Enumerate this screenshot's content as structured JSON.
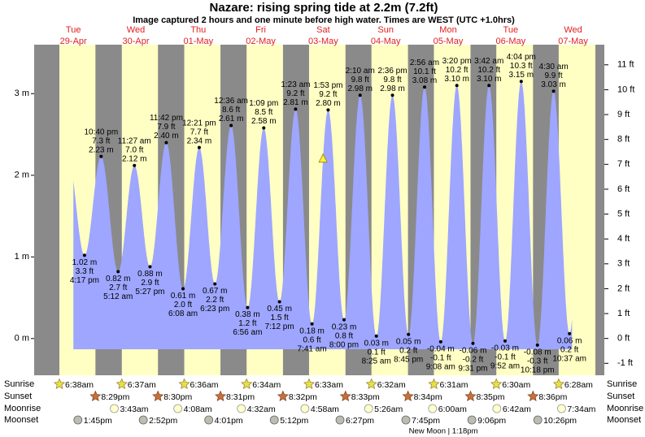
{
  "chart_data": {
    "type": "area",
    "title": "Nazare: rising  spring tide at 2.2m (7.2ft)",
    "subtitle": "Image captured 2 hours and one minute before high water. Times are WEST (UTC +1.0hrs)",
    "color": "#9ea6ff",
    "ylim": [
      -0.45,
      3.6
    ],
    "yticks": [
      {
        "value": 0,
        "label": "0 m"
      },
      {
        "value": 1,
        "label": "1 m"
      },
      {
        "value": 2,
        "label": "2 m"
      },
      {
        "value": 3,
        "label": "3 m"
      }
    ],
    "y2lim": [
      -1.48,
      11.81
    ],
    "y2ticks": [
      {
        "value": -1,
        "label": "-1 ft"
      },
      {
        "value": 0,
        "label": "0 ft"
      },
      {
        "value": 1,
        "label": "1 ft"
      },
      {
        "value": 2,
        "label": "2 ft"
      },
      {
        "value": 3,
        "label": "3 ft"
      },
      {
        "value": 4,
        "label": "4 ft"
      },
      {
        "value": 5,
        "label": "5 ft"
      },
      {
        "value": 6,
        "label": "6 ft"
      },
      {
        "value": 7,
        "label": "7 ft"
      },
      {
        "value": 8,
        "label": "8 ft"
      },
      {
        "value": 9,
        "label": "9 ft"
      },
      {
        "value": 10,
        "label": "10 ft"
      },
      {
        "value": 11,
        "label": "11 ft"
      }
    ],
    "row_labels": [
      "Sunrise",
      "Sunset",
      "Moonrise",
      "Moonset"
    ],
    "moon_phase": "New Moon | 1:18pm",
    "marker": {
      "height": 2.2
    },
    "days": [
      {
        "weekday": "Tue",
        "date": "29-Apr",
        "sunrise": "6:38am",
        "sunset": "8:29pm",
        "moonrise": null,
        "moonset": "1:45pm",
        "tides": [
          {
            "time": "4:17 pm",
            "height": 1.02,
            "height_label": "1.02 m",
            "feet": 3.3,
            "feet_label": "3.3 ft"
          },
          {
            "time": "10:40 pm",
            "height": 2.23,
            "height_label": "2.23 m",
            "feet": 7.3,
            "feet_label": "7.3 ft"
          }
        ]
      },
      {
        "weekday": "Wed",
        "date": "30-Apr",
        "sunrise": "6:37am",
        "sunset": "8:30pm",
        "moonrise": "3:43am",
        "moonset": "2:52pm",
        "tides": [
          {
            "time": "5:12 am",
            "height": 0.82,
            "height_label": "0.82 m",
            "feet": 2.7,
            "feet_label": "2.7 ft"
          },
          {
            "time": "11:27 am",
            "height": 2.12,
            "height_label": "2.12 m",
            "feet": 7.0,
            "feet_label": "7.0 ft"
          },
          {
            "time": "5:27 pm",
            "height": 0.88,
            "height_label": "0.88 m",
            "feet": 2.9,
            "feet_label": "2.9 ft"
          },
          {
            "time": "11:42 pm",
            "height": 2.4,
            "height_label": "2.40 m",
            "feet": 7.9,
            "feet_label": "7.9 ft"
          }
        ]
      },
      {
        "weekday": "Thu",
        "date": "01-May",
        "sunrise": "6:36am",
        "sunset": "8:31pm",
        "moonrise": "4:08am",
        "moonset": "4:01pm",
        "tides": [
          {
            "time": "6:08 am",
            "height": 0.61,
            "height_label": "0.61 m",
            "feet": 2.0,
            "feet_label": "2.0 ft"
          },
          {
            "time": "12:21 pm",
            "height": 2.34,
            "height_label": "2.34 m",
            "feet": 7.7,
            "feet_label": "7.7 ft"
          },
          {
            "time": "6:23 pm",
            "height": 0.67,
            "height_label": "0.67 m",
            "feet": 2.2,
            "feet_label": "2.2 ft"
          }
        ]
      },
      {
        "weekday": "Fri",
        "date": "02-May",
        "sunrise": "6:34am",
        "sunset": "8:32pm",
        "moonrise": "4:32am",
        "moonset": "5:12pm",
        "tides": [
          {
            "time": "12:36 am",
            "height": 2.61,
            "height_label": "2.61 m",
            "feet": 8.6,
            "feet_label": "8.6 ft"
          },
          {
            "time": "6:56 am",
            "height": 0.38,
            "height_label": "0.38 m",
            "feet": 1.2,
            "feet_label": "1.2 ft"
          },
          {
            "time": "1:09 pm",
            "height": 2.58,
            "height_label": "2.58 m",
            "feet": 8.5,
            "feet_label": "8.5 ft"
          },
          {
            "time": "7:12 pm",
            "height": 0.45,
            "height_label": "0.45 m",
            "feet": 1.5,
            "feet_label": "1.5 ft"
          }
        ]
      },
      {
        "weekday": "Sat",
        "date": "03-May",
        "sunrise": "6:33am",
        "sunset": "8:33pm",
        "moonrise": "4:58am",
        "moonset": "6:27pm",
        "tides": [
          {
            "time": "1:23 am",
            "height": 2.81,
            "height_label": "2.81 m",
            "feet": 9.2,
            "feet_label": "9.2 ft"
          },
          {
            "time": "7:41 am",
            "height": 0.18,
            "height_label": "0.18 m",
            "feet": 0.6,
            "feet_label": "0.6 ft"
          },
          {
            "time": "1:53 pm",
            "height": 2.8,
            "height_label": "2.80 m",
            "feet": 9.2,
            "feet_label": "9.2 ft"
          },
          {
            "time": "8:00 pm",
            "height": 0.23,
            "height_label": "0.23 m",
            "feet": 0.8,
            "feet_label": "0.8 ft"
          }
        ]
      },
      {
        "weekday": "Sun",
        "date": "04-May",
        "sunrise": "6:32am",
        "sunset": "8:34pm",
        "moonrise": "5:26am",
        "moonset": "7:45pm",
        "tides": [
          {
            "time": "2:10 am",
            "height": 2.98,
            "height_label": "2.98 m",
            "feet": 9.8,
            "feet_label": "9.8 ft"
          },
          {
            "time": "8:25 am",
            "height": 0.03,
            "height_label": "0.03 m",
            "feet": 0.1,
            "feet_label": "0.1 ft"
          },
          {
            "time": "2:36 pm",
            "height": 2.98,
            "height_label": "2.98 m",
            "feet": 9.8,
            "feet_label": "9.8 ft"
          },
          {
            "time": "8:45 pm",
            "height": 0.05,
            "height_label": "0.05 m",
            "feet": 0.2,
            "feet_label": "0.2 ft"
          }
        ]
      },
      {
        "weekday": "Mon",
        "date": "05-May",
        "sunrise": "6:31am",
        "sunset": "8:35pm",
        "moonrise": "6:00am",
        "moonset": "9:06pm",
        "tides": [
          {
            "time": "2:56 am",
            "height": 3.08,
            "height_label": "3.08 m",
            "feet": 10.1,
            "feet_label": "10.1 ft"
          },
          {
            "time": "9:08 am",
            "height": -0.04,
            "height_label": "-0.04 m",
            "feet": -0.1,
            "feet_label": "-0.1 ft"
          },
          {
            "time": "3:20 pm",
            "height": 3.1,
            "height_label": "3.10 m",
            "feet": 10.2,
            "feet_label": "10.2 ft"
          },
          {
            "time": "9:31 pm",
            "height": -0.06,
            "height_label": "-0.06 m",
            "feet": -0.2,
            "feet_label": "-0.2 ft"
          }
        ]
      },
      {
        "weekday": "Tue",
        "date": "06-May",
        "sunrise": "6:30am",
        "sunset": "8:36pm",
        "moonrise": "6:42am",
        "moonset": "10:26pm",
        "tides": [
          {
            "time": "3:42 am",
            "height": 3.1,
            "height_label": "3.10 m",
            "feet": 10.2,
            "feet_label": "10.2 ft"
          },
          {
            "time": "9:52 am",
            "height": -0.03,
            "height_label": "-0.03 m",
            "feet": -0.1,
            "feet_label": "-0.1 ft"
          },
          {
            "time": "4:04 pm",
            "height": 3.15,
            "height_label": "3.15 m",
            "feet": 10.3,
            "feet_label": "10.3 ft"
          },
          {
            "time": "10:18 pm",
            "height": -0.08,
            "height_label": "-0.08 m",
            "feet": -0.3,
            "feet_label": "-0.3 ft"
          }
        ]
      },
      {
        "weekday": "Wed",
        "date": "07-May",
        "sunrise": "6:28am",
        "sunset": null,
        "moonrise": "7:34am",
        "moonset": null,
        "tides": [
          {
            "time": "4:30 am",
            "height": 3.03,
            "height_label": "3.03 m",
            "feet": 9.9,
            "feet_label": "9.9 ft"
          },
          {
            "time": "10:37 am",
            "height": 0.06,
            "height_label": "0.06 m",
            "feet": 0.2,
            "feet_label": "0.2 ft"
          }
        ]
      }
    ]
  }
}
